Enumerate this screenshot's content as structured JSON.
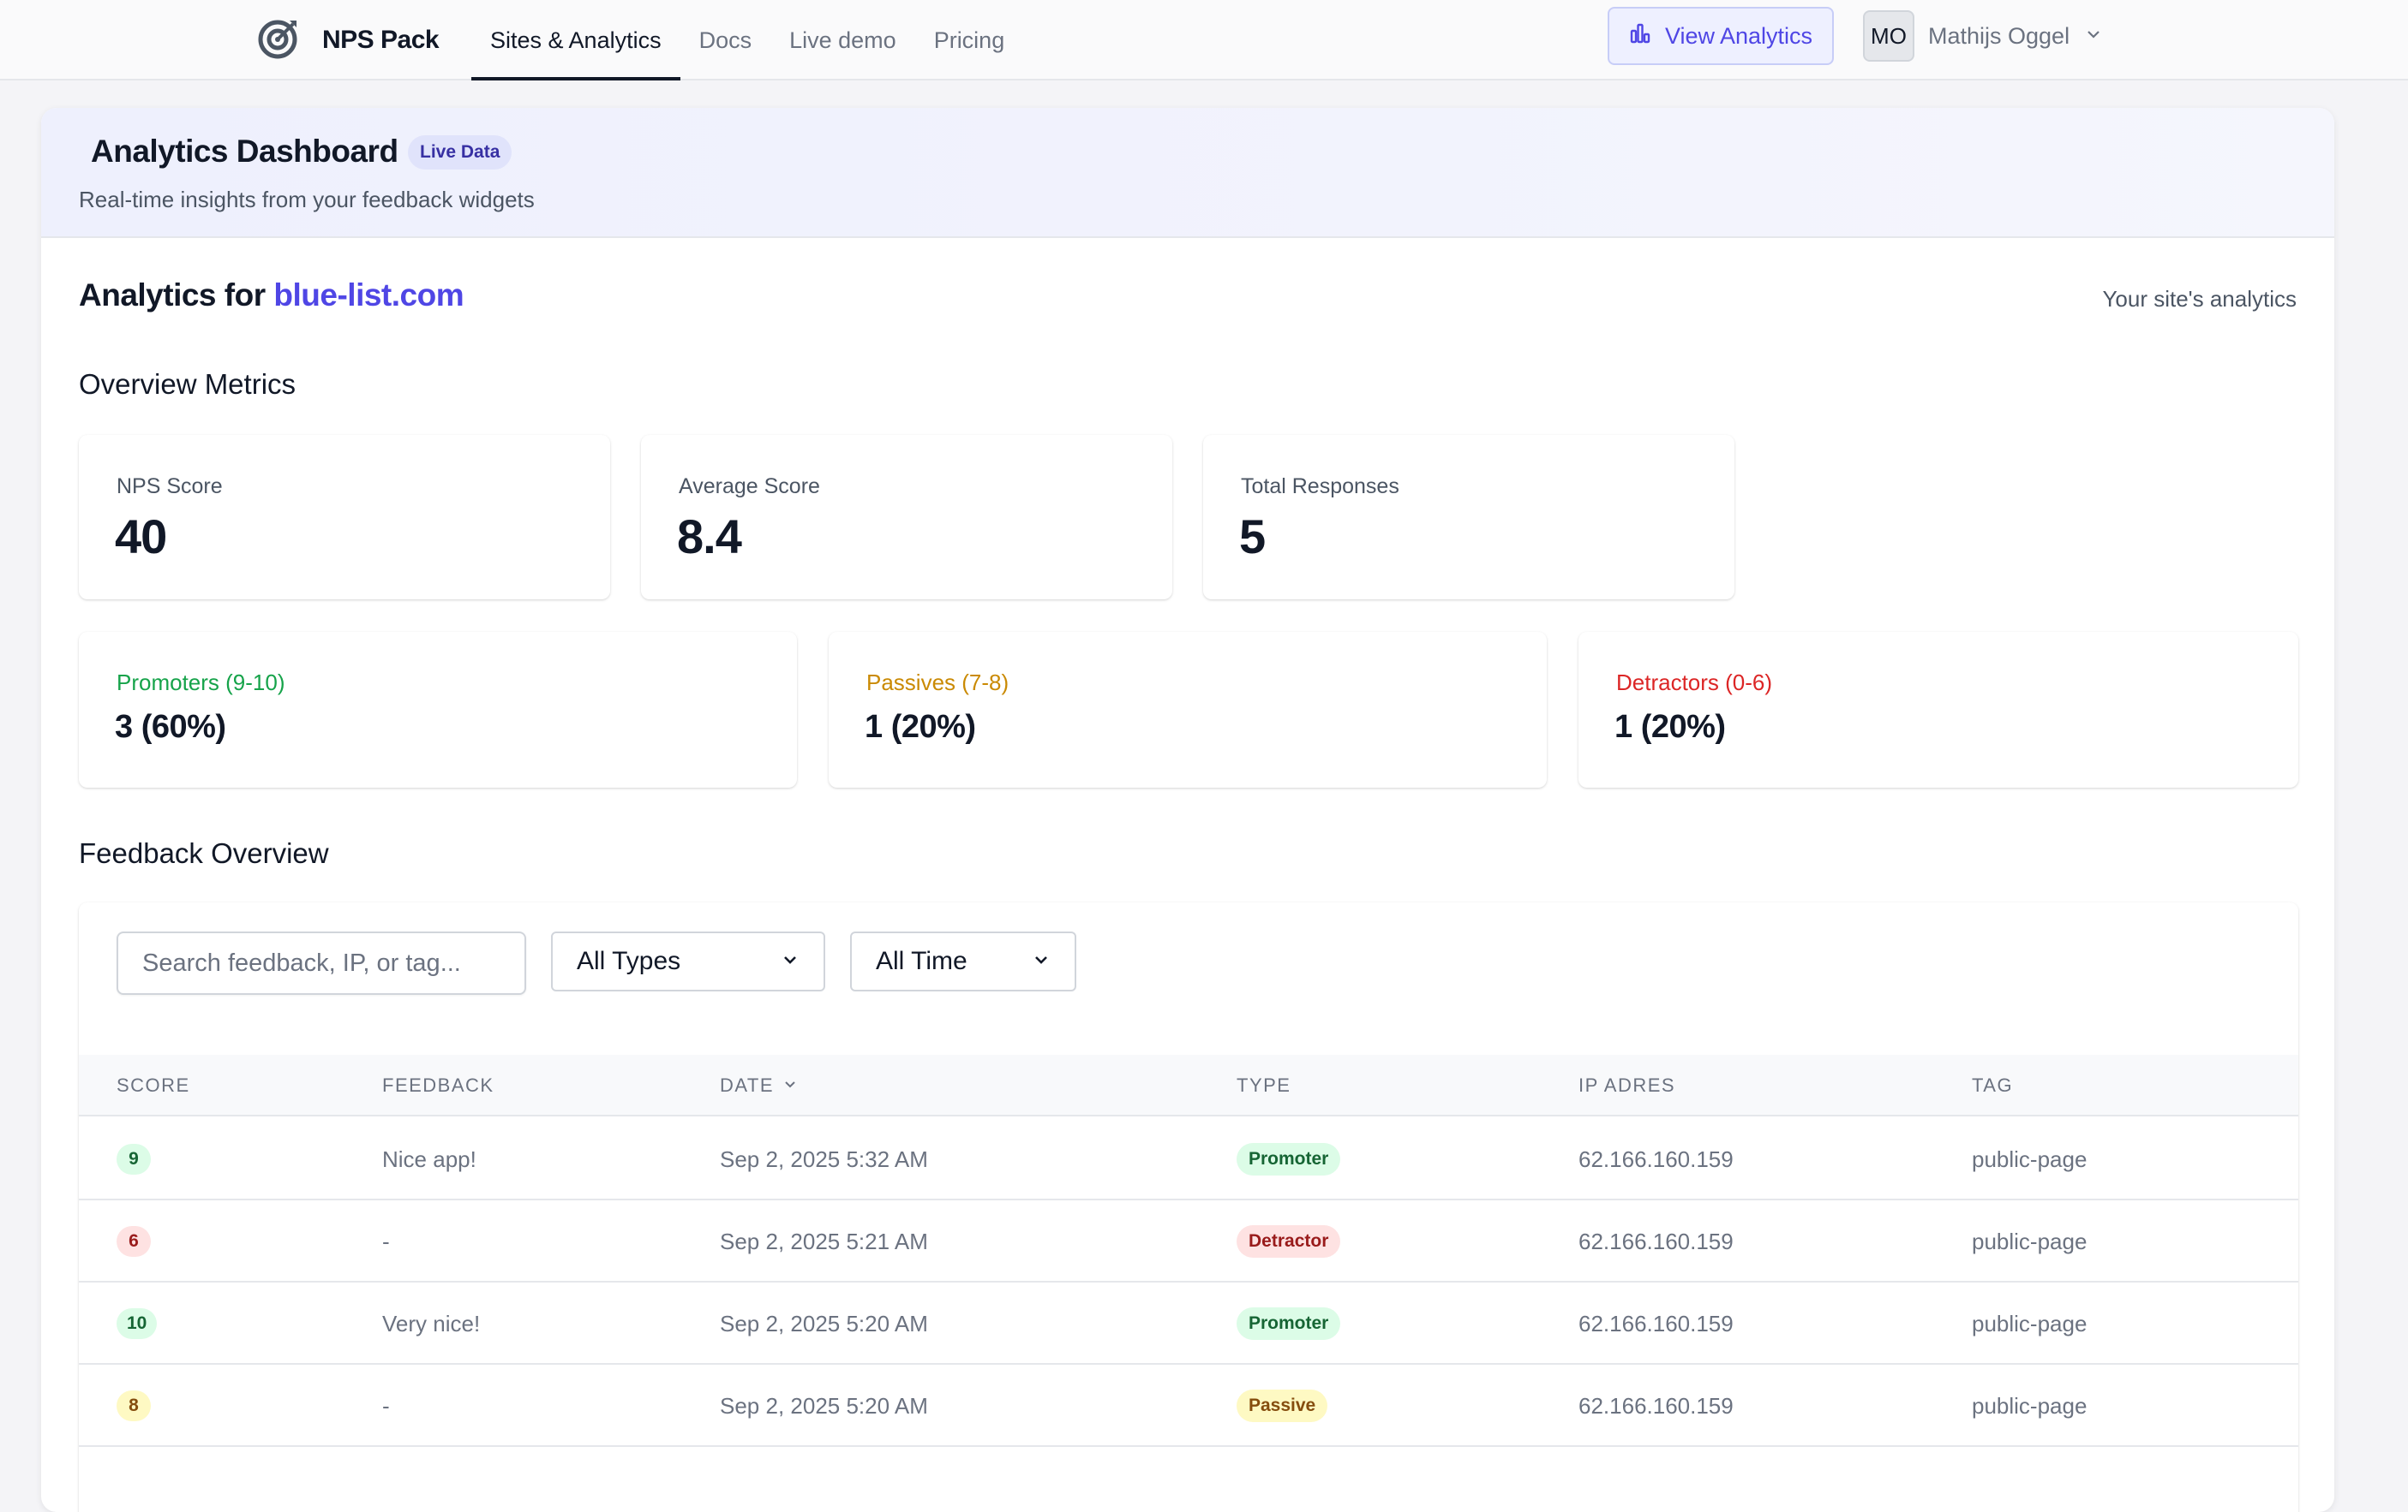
{
  "nav": {
    "brand": "NPS Pack",
    "links": [
      "Sites & Analytics",
      "Docs",
      "Live demo",
      "Pricing"
    ],
    "view_analytics": "View Analytics",
    "user_initials": "MO",
    "user_name": "Mathijs Oggel"
  },
  "hero": {
    "title": "Analytics Dashboard",
    "badge": "Live Data",
    "subtitle": "Real-time insights from your feedback widgets"
  },
  "site": {
    "prefix": "Analytics for",
    "domain": "blue-list.com",
    "note": "Your site's analytics"
  },
  "overview": {
    "title": "Overview Metrics",
    "metrics": [
      {
        "label": "NPS Score",
        "value": "40"
      },
      {
        "label": "Average Score",
        "value": "8.4"
      },
      {
        "label": "Total Responses",
        "value": "5"
      }
    ],
    "segments": [
      {
        "label": "Promoters (9-10)",
        "value": "3 (60%)",
        "color": "#16a34a"
      },
      {
        "label": "Passives (7-8)",
        "value": "1 (20%)",
        "color": "#ca8a04"
      },
      {
        "label": "Detractors (0-6)",
        "value": "1 (20%)",
        "color": "#dc2626"
      }
    ]
  },
  "feedback": {
    "title": "Feedback Overview",
    "search_placeholder": "Search feedback, IP, or tag...",
    "type_filter": "All Types",
    "time_filter": "All Time",
    "columns": [
      "SCORE",
      "FEEDBACK",
      "DATE",
      "TYPE",
      "IP ADRES",
      "TAG"
    ],
    "rows": [
      {
        "score": "9",
        "feedback": "Nice app!",
        "date": "Sep 2, 2025 5:32 AM",
        "type": "Promoter",
        "ip": "62.166.160.159",
        "tag": "public-page"
      },
      {
        "score": "6",
        "feedback": "-",
        "date": "Sep 2, 2025 5:21 AM",
        "type": "Detractor",
        "ip": "62.166.160.159",
        "tag": "public-page"
      },
      {
        "score": "10",
        "feedback": "Very nice!",
        "date": "Sep 2, 2025 5:20 AM",
        "type": "Promoter",
        "ip": "62.166.160.159",
        "tag": "public-page"
      },
      {
        "score": "8",
        "feedback": "-",
        "date": "Sep 2, 2025 5:20 AM",
        "type": "Passive",
        "ip": "62.166.160.159",
        "tag": "public-page"
      }
    ]
  },
  "colors": {
    "accent": "#4f46e5",
    "promoter_bg": "#dcfce7",
    "promoter_fg": "#166534",
    "passive_bg": "#fef9c3",
    "passive_fg": "#854d0e",
    "detractor_bg": "#fee2e2",
    "detractor_fg": "#991b1b"
  }
}
